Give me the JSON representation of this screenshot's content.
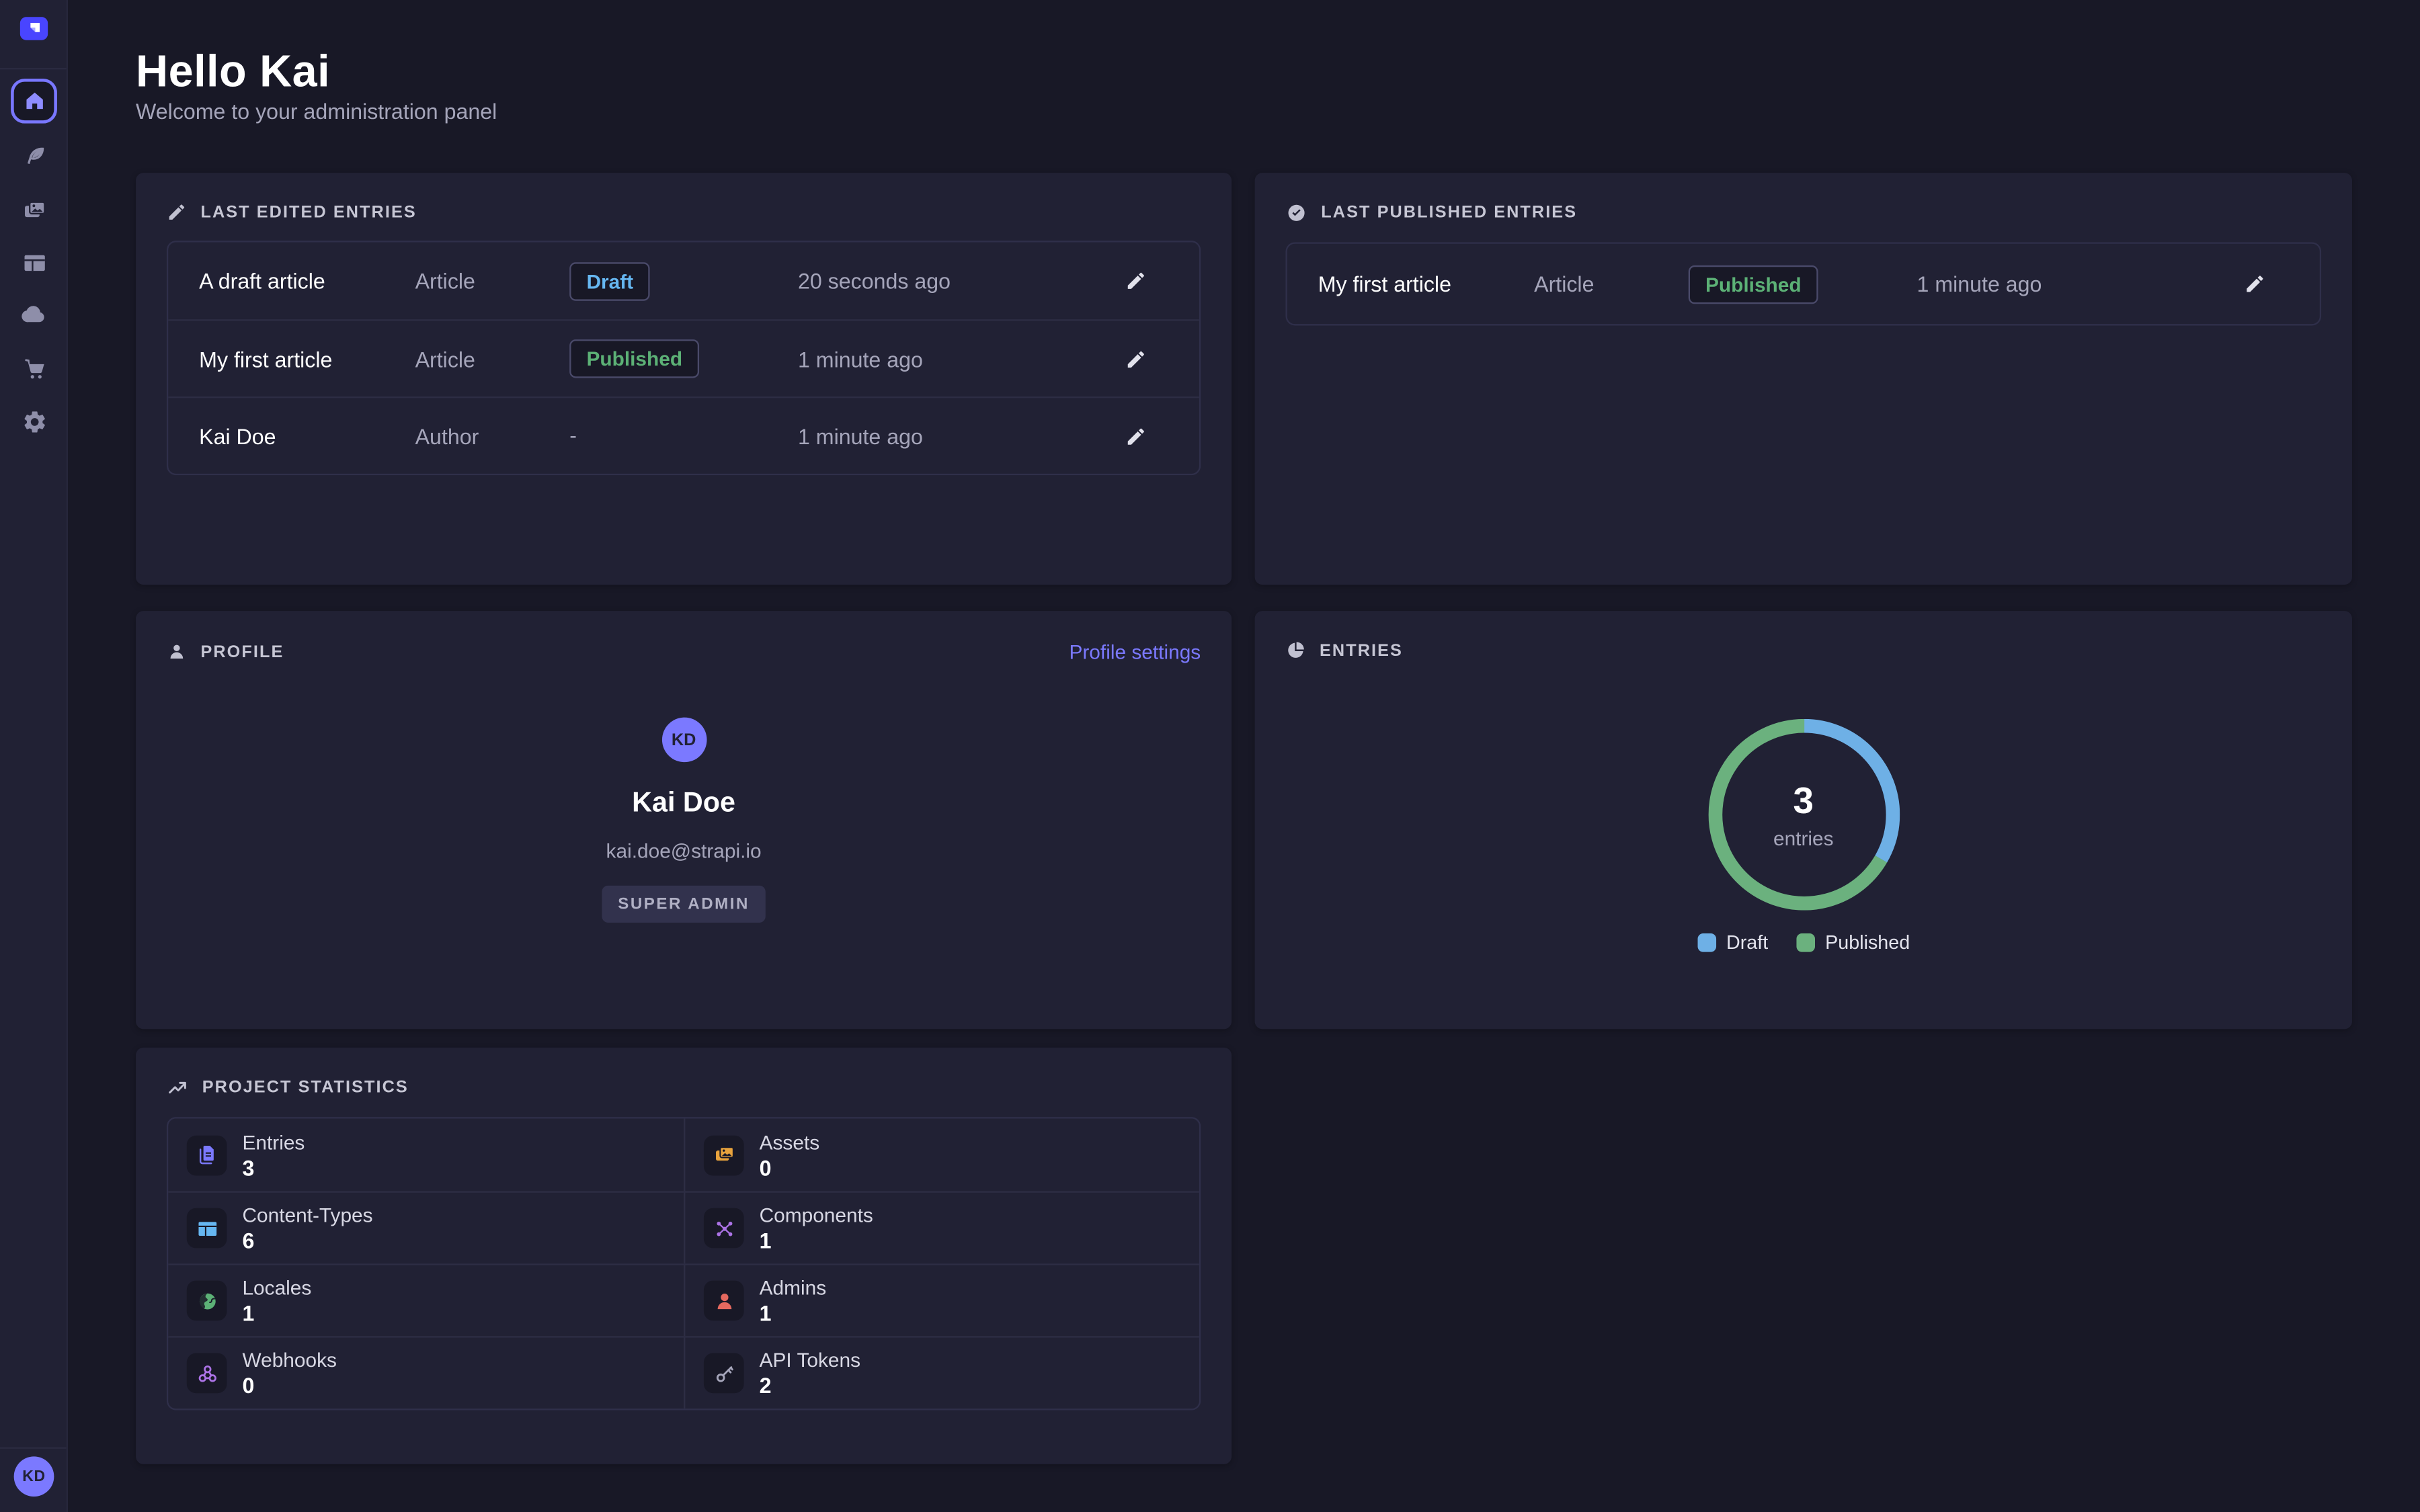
{
  "header": {
    "title": "Hello Kai",
    "subtitle": "Welcome to your administration panel"
  },
  "sidebar": {
    "logo_icon": "strapi-logo",
    "items": [
      "home",
      "content-manager",
      "media-library",
      "content-type-builder",
      "deploy",
      "marketplace",
      "settings"
    ],
    "user_initials": "KD"
  },
  "cards": {
    "last_edited": {
      "title": "LAST EDITED ENTRIES",
      "rows": [
        {
          "title": "A draft article",
          "type": "Article",
          "status": "Draft",
          "status_type": "draft",
          "time": "20 seconds ago"
        },
        {
          "title": "My first article",
          "type": "Article",
          "status": "Published",
          "status_type": "published",
          "time": "1 minute ago"
        },
        {
          "title": "Kai Doe",
          "type": "Author",
          "status": "-",
          "status_type": "none",
          "time": "1 minute ago"
        }
      ]
    },
    "last_published": {
      "title": "LAST PUBLISHED ENTRIES",
      "rows": [
        {
          "title": "My first article",
          "type": "Article",
          "status": "Published",
          "status_type": "published",
          "time": "1 minute ago"
        }
      ]
    },
    "profile": {
      "title": "PROFILE",
      "link": "Profile settings",
      "initials": "KD",
      "name": "Kai Doe",
      "email": "kai.doe@strapi.io",
      "role": "SUPER ADMIN"
    },
    "entries": {
      "title": "ENTRIES"
    },
    "stats": {
      "title": "PROJECT STATISTICS",
      "items": [
        {
          "label": "Entries",
          "value": "3",
          "icon": "entries-file-icon"
        },
        {
          "label": "Assets",
          "value": "0",
          "icon": "assets-image-icon"
        },
        {
          "label": "Content-Types",
          "value": "6",
          "icon": "content-types-layout-icon"
        },
        {
          "label": "Components",
          "value": "1",
          "icon": "components-nodes-icon"
        },
        {
          "label": "Locales",
          "value": "1",
          "icon": "locales-globe-icon"
        },
        {
          "label": "Admins",
          "value": "1",
          "icon": "admins-user-icon"
        },
        {
          "label": "Webhooks",
          "value": "0",
          "icon": "webhooks-knot-icon"
        },
        {
          "label": "API Tokens",
          "value": "2",
          "icon": "api-tokens-key-icon"
        }
      ]
    }
  },
  "chart_data": {
    "type": "pie",
    "title": "ENTRIES",
    "categories": [
      "Draft",
      "Published"
    ],
    "values": [
      1,
      2
    ],
    "center_value": "3",
    "center_label": "entries",
    "colors": [
      "#6EB0E6",
      "#6BB17E"
    ],
    "legend_position": "bottom",
    "donut": true
  },
  "colors": {
    "background": "#181826",
    "card": "#212134",
    "accent": "#7B79FF",
    "brand": "#4945FF",
    "draft": "#66B7F1",
    "published": "#5CB176"
  }
}
